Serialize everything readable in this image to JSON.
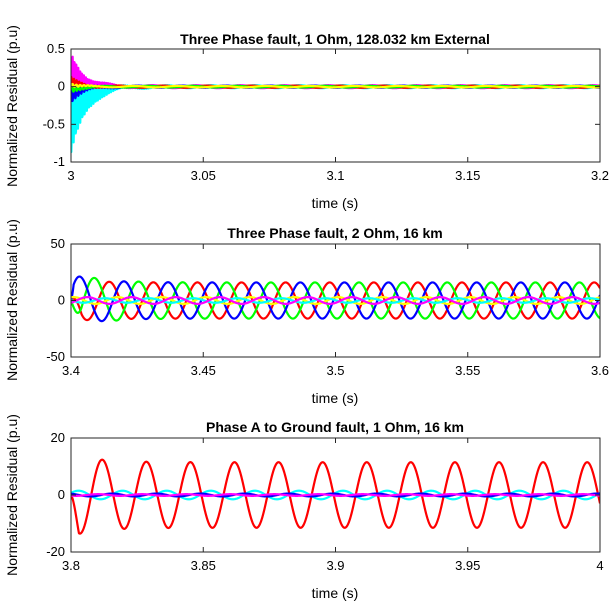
{
  "chart_data": [
    {
      "type": "line",
      "title": "Three Phase fault, 1 Ohm, 128.032 km External",
      "xlabel": "time (s)",
      "ylabel": "Normalized Residual (p.u)",
      "xlim": [
        3.0,
        3.2
      ],
      "ylim": [
        -1,
        0.5
      ],
      "xticks": [
        "3",
        "3.05",
        "3.1",
        "3.15",
        "3.2"
      ],
      "yticks": [
        "-1",
        "-0.5",
        "0",
        "0.5"
      ],
      "xtick_values": [
        3.0,
        3.05,
        3.1,
        3.15,
        3.2
      ],
      "ytick_values": [
        -1,
        -0.5,
        0,
        0.5
      ],
      "grid": false,
      "series": [
        {
          "color": "#00ffff",
          "offset": -0.9,
          "decay": 0.006,
          "osc": 0.02,
          "freq": 60,
          "phase": 0.5,
          "hf": 1200
        },
        {
          "color": "#ff00ff",
          "offset": 0.45,
          "decay": 0.005,
          "osc": 0.02,
          "freq": 60,
          "phase": 2.6,
          "hf": 1400
        },
        {
          "color": "#0000ff",
          "offset": -0.2,
          "decay": 0.005,
          "osc": 0.015,
          "freq": 60,
          "phase": 4.7,
          "hf": 900
        },
        {
          "color": "#ff0000",
          "offset": 0.12,
          "decay": 0.004,
          "osc": 0.015,
          "freq": 60,
          "phase": 1.0,
          "hf": 1000
        },
        {
          "color": "#00ff00",
          "offset": -0.08,
          "decay": 0.004,
          "osc": 0.012,
          "freq": 60,
          "phase": 3.1,
          "hf": 800
        },
        {
          "color": "#ffff00",
          "offset": 0.05,
          "decay": 0.004,
          "osc": 0.01,
          "freq": 60,
          "phase": 5.2,
          "hf": 700
        }
      ]
    },
    {
      "type": "line",
      "title": "Three Phase fault, 2 Ohm, 16 km",
      "xlabel": "time (s)",
      "ylabel": "Normalized Residual (p.u)",
      "xlim": [
        3.4,
        3.6
      ],
      "ylim": [
        -50,
        50
      ],
      "xticks": [
        "3.4",
        "3.45",
        "3.5",
        "3.55",
        "3.6"
      ],
      "yticks": [
        "-50",
        "0",
        "50"
      ],
      "xtick_values": [
        3.4,
        3.45,
        3.5,
        3.55,
        3.6
      ],
      "ytick_values": [
        -50,
        0,
        50
      ],
      "grid": false,
      "series": [
        {
          "color": "#ff0000",
          "amp": 16,
          "freq": 60,
          "phase": 2.4,
          "start": 3.4,
          "onset": 3.404,
          "over": 0.15
        },
        {
          "color": "#00ff00",
          "amp": 16,
          "freq": 60,
          "phase": 4.5,
          "start": 3.4,
          "onset": 3.404,
          "over": 0.6
        },
        {
          "color": "#0000ff",
          "amp": 16,
          "freq": 60,
          "phase": 0.3,
          "start": 3.4,
          "onset": 3.401,
          "over": 0.45
        },
        {
          "color": "#ffff00",
          "amp": 3,
          "freq": 60,
          "phase": 1.2,
          "start": 3.4,
          "onset": 3.4,
          "over": 0
        },
        {
          "color": "#00ffff",
          "amp": 2,
          "freq": 60,
          "phase": 3.0,
          "start": 3.4,
          "onset": 3.4,
          "over": 0
        },
        {
          "color": "#ff00ff",
          "amp": 3,
          "freq": 60,
          "phase": 5.5,
          "start": 3.4,
          "onset": 3.4,
          "over": 0
        }
      ]
    },
    {
      "type": "line",
      "title": "Phase A to Ground fault, 1 Ohm, 16 km",
      "xlabel": "time (s)",
      "ylabel": "Normalized Residual (p.u)",
      "xlim": [
        3.8,
        4.0
      ],
      "ylim": [
        -20,
        20
      ],
      "xticks": [
        "3.8",
        "3.85",
        "3.9",
        "3.95",
        "4"
      ],
      "yticks": [
        "-20",
        "0",
        "20"
      ],
      "xtick_values": [
        3.8,
        3.85,
        3.9,
        3.95,
        4.0
      ],
      "ytick_values": [
        -20,
        0,
        20
      ],
      "grid": false,
      "series": [
        {
          "color": "#ff0000",
          "amp": 11.5,
          "freq": 60,
          "phase": 3.4,
          "start": 3.8,
          "onset": 3.803,
          "over": 0.25
        },
        {
          "color": "#00ffff",
          "amp": 1.5,
          "freq": 60,
          "phase": 0.5,
          "start": 3.8,
          "onset": 3.8,
          "over": 0
        },
        {
          "color": "#0000ff",
          "amp": 0.5,
          "freq": 60,
          "phase": 2.0,
          "start": 3.8,
          "onset": 3.8,
          "over": 0
        },
        {
          "color": "#ff00ff",
          "amp": 0.3,
          "freq": 60,
          "phase": 4.0,
          "start": 3.8,
          "onset": 3.8,
          "over": 0
        }
      ]
    }
  ]
}
